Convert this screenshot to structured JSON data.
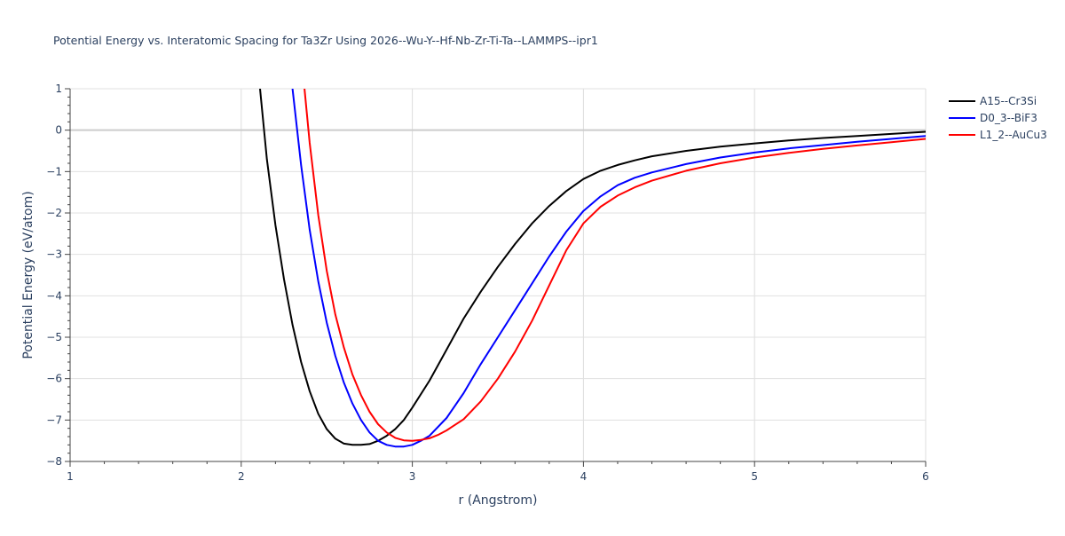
{
  "chart_data": {
    "type": "line",
    "title": "Potential Energy vs. Interatomic Spacing for Ta3Zr Using 2026--Wu-Y--Hf-Nb-Zr-Ti-Ta--LAMMPS--ipr1",
    "xlabel": "r (Angstrom)",
    "ylabel": "Potential Energy (eV/atom)",
    "xlim": [
      1,
      6
    ],
    "ylim": [
      -8,
      1
    ],
    "xticks": [
      1,
      2,
      3,
      4,
      5,
      6
    ],
    "yticks": [
      1,
      0,
      -1,
      -2,
      -3,
      -4,
      -5,
      -6,
      -7,
      -8
    ],
    "xtick_labels": [
      "1",
      "2",
      "3",
      "4",
      "5",
      "6"
    ],
    "ytick_labels": [
      "1",
      "0",
      "−1",
      "−2",
      "−3",
      "−4",
      "−5",
      "−6",
      "−7",
      "−8"
    ],
    "grid": true,
    "legend_position": "top-right",
    "series": [
      {
        "name": "A15--Cr3Si",
        "color": "#000000",
        "x": [
          2.11,
          2.15,
          2.2,
          2.25,
          2.3,
          2.35,
          2.4,
          2.45,
          2.5,
          2.55,
          2.6,
          2.65,
          2.7,
          2.75,
          2.8,
          2.85,
          2.9,
          2.95,
          3.0,
          3.1,
          3.2,
          3.3,
          3.4,
          3.5,
          3.6,
          3.7,
          3.8,
          3.9,
          4.0,
          4.1,
          4.2,
          4.3,
          4.4,
          4.6,
          4.8,
          5.0,
          5.2,
          5.4,
          5.6,
          5.8,
          6.0
        ],
        "y": [
          1.0,
          -0.7,
          -2.3,
          -3.6,
          -4.7,
          -5.6,
          -6.3,
          -6.85,
          -7.22,
          -7.45,
          -7.57,
          -7.6,
          -7.6,
          -7.58,
          -7.5,
          -7.38,
          -7.22,
          -7.0,
          -6.7,
          -6.05,
          -5.3,
          -4.55,
          -3.9,
          -3.3,
          -2.75,
          -2.25,
          -1.83,
          -1.47,
          -1.18,
          -0.98,
          -0.84,
          -0.73,
          -0.63,
          -0.5,
          -0.4,
          -0.32,
          -0.25,
          -0.19,
          -0.14,
          -0.09,
          -0.04
        ]
      },
      {
        "name": "D0_3--BiF3",
        "color": "#0000ff",
        "x": [
          2.3,
          2.35,
          2.4,
          2.45,
          2.5,
          2.55,
          2.6,
          2.65,
          2.7,
          2.75,
          2.8,
          2.85,
          2.9,
          2.95,
          3.0,
          3.05,
          3.1,
          3.2,
          3.3,
          3.4,
          3.5,
          3.6,
          3.7,
          3.8,
          3.9,
          4.0,
          4.1,
          4.2,
          4.3,
          4.4,
          4.6,
          4.8,
          5.0,
          5.2,
          5.4,
          5.6,
          5.8,
          6.0
        ],
        "y": [
          1.0,
          -0.85,
          -2.4,
          -3.65,
          -4.65,
          -5.45,
          -6.1,
          -6.6,
          -7.0,
          -7.3,
          -7.5,
          -7.6,
          -7.64,
          -7.64,
          -7.6,
          -7.5,
          -7.38,
          -6.95,
          -6.35,
          -5.65,
          -5.0,
          -4.35,
          -3.7,
          -3.05,
          -2.45,
          -1.95,
          -1.6,
          -1.33,
          -1.15,
          -1.02,
          -0.82,
          -0.66,
          -0.54,
          -0.44,
          -0.36,
          -0.28,
          -0.21,
          -0.14
        ]
      },
      {
        "name": "L1_2--AuCu3",
        "color": "#ff0000",
        "x": [
          2.37,
          2.4,
          2.45,
          2.5,
          2.55,
          2.6,
          2.65,
          2.7,
          2.75,
          2.8,
          2.85,
          2.9,
          2.95,
          3.0,
          3.05,
          3.1,
          3.15,
          3.2,
          3.3,
          3.4,
          3.5,
          3.6,
          3.7,
          3.8,
          3.9,
          4.0,
          4.1,
          4.2,
          4.3,
          4.4,
          4.6,
          4.8,
          5.0,
          5.2,
          5.4,
          5.6,
          5.8,
          6.0
        ],
        "y": [
          1.0,
          -0.3,
          -2.05,
          -3.4,
          -4.45,
          -5.25,
          -5.9,
          -6.4,
          -6.8,
          -7.1,
          -7.3,
          -7.43,
          -7.49,
          -7.5,
          -7.48,
          -7.44,
          -7.36,
          -7.25,
          -6.98,
          -6.55,
          -6.0,
          -5.35,
          -4.6,
          -3.75,
          -2.9,
          -2.25,
          -1.85,
          -1.58,
          -1.38,
          -1.22,
          -0.98,
          -0.8,
          -0.66,
          -0.55,
          -0.45,
          -0.37,
          -0.29,
          -0.21
        ]
      }
    ]
  }
}
